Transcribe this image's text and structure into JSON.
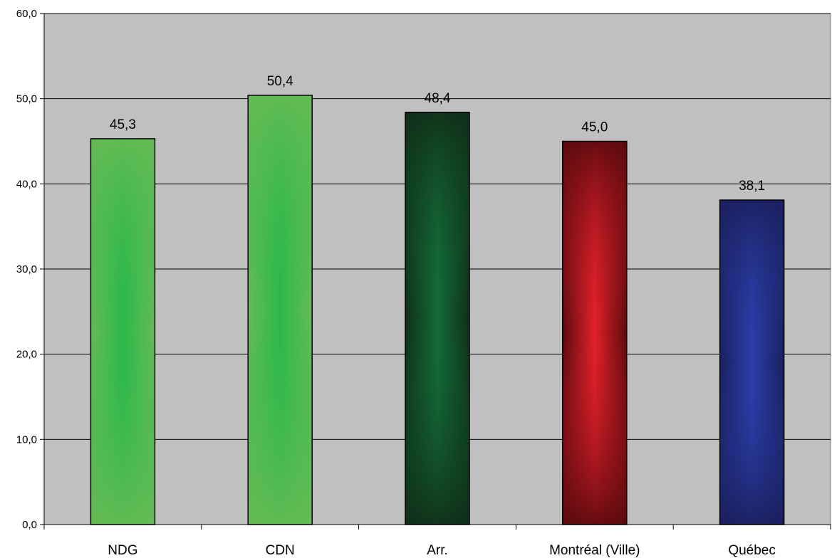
{
  "chart_data": {
    "type": "bar",
    "categories": [
      "NDG",
      "CDN",
      "Arr.",
      "Montréal (Ville)",
      "Québec"
    ],
    "values": [
      45.3,
      50.4,
      48.4,
      45.0,
      38.1
    ],
    "value_labels": [
      "45,3",
      "50,4",
      "48,4",
      "45,0",
      "38,1"
    ],
    "title": "",
    "xlabel": "",
    "ylabel": "",
    "ylim": [
      0,
      60
    ],
    "yticks": [
      0,
      10,
      20,
      30,
      40,
      50,
      60
    ],
    "ytick_labels": [
      "0,0",
      "10,0",
      "20,0",
      "30,0",
      "40,0",
      "50,0",
      "60,0"
    ],
    "grid": true,
    "legend": "none",
    "plot_background": "#c0c0c0",
    "bar_colors": [
      {
        "edge": "#66bb55",
        "center": "#2db84a"
      },
      {
        "edge": "#66bb55",
        "center": "#2db84a"
      },
      {
        "edge": "#0f2e18",
        "center": "#146b38"
      },
      {
        "edge": "#5a0a0e",
        "center": "#e0202a"
      },
      {
        "edge": "#1a1f5e",
        "center": "#2a3ea8"
      }
    ]
  }
}
